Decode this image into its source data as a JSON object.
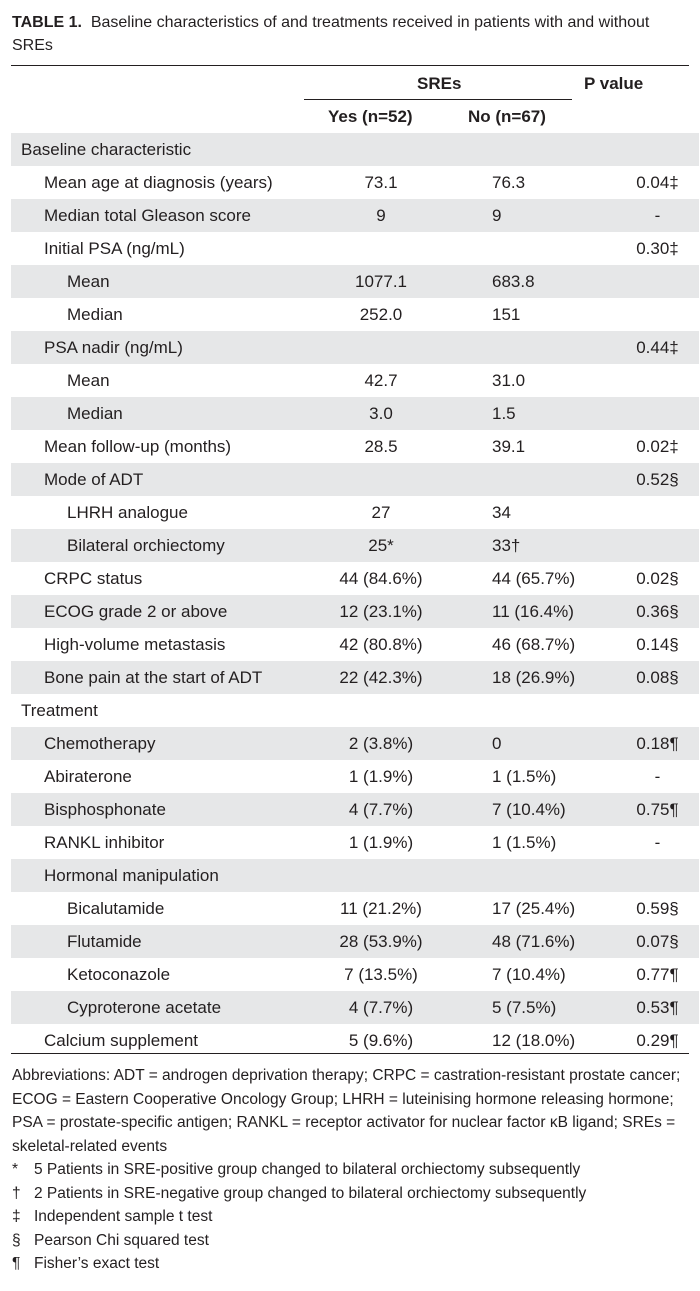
{
  "table_title": {
    "label": "TABLE 1.",
    "text": "Baseline characteristics of and treatments received in patients with and without SREs"
  },
  "header": {
    "group": "SREs",
    "yes": "Yes (n=52)",
    "no": "No (n=67)",
    "pvalue": "P value"
  },
  "rows": [
    {
      "label": "Baseline characteristic",
      "indent": 0,
      "yes": "",
      "no": "",
      "p": "",
      "shaded": true
    },
    {
      "label": "Mean age at diagnosis (years)",
      "indent": 1,
      "yes": "73.1",
      "no": "76.3",
      "p": "0.04‡",
      "shaded": false
    },
    {
      "label": "Median total Gleason score",
      "indent": 1,
      "yes": "9",
      "no": "9",
      "p": "-",
      "shaded": true
    },
    {
      "label": "Initial PSA (ng/mL)",
      "indent": 1,
      "yes": "",
      "no": "",
      "p": "0.30‡",
      "shaded": false
    },
    {
      "label": "Mean",
      "indent": 2,
      "yes": "1077.1",
      "no": "683.8",
      "p": "",
      "shaded": true
    },
    {
      "label": "Median",
      "indent": 2,
      "yes": "252.0",
      "no": "151",
      "p": "",
      "shaded": false
    },
    {
      "label": "PSA nadir (ng/mL)",
      "indent": 1,
      "yes": "",
      "no": "",
      "p": "0.44‡",
      "shaded": true
    },
    {
      "label": "Mean",
      "indent": 2,
      "yes": "42.7",
      "no": "31.0",
      "p": "",
      "shaded": false
    },
    {
      "label": "Median",
      "indent": 2,
      "yes": "3.0",
      "no": "1.5",
      "p": "",
      "shaded": true
    },
    {
      "label": "Mean follow-up (months)",
      "indent": 1,
      "yes": "28.5",
      "no": "39.1",
      "p": "0.02‡",
      "shaded": false
    },
    {
      "label": "Mode of ADT",
      "indent": 1,
      "yes": "",
      "no": "",
      "p": "0.52§",
      "shaded": true
    },
    {
      "label": "LHRH analogue",
      "indent": 2,
      "yes": "27",
      "no": "34",
      "p": "",
      "shaded": false
    },
    {
      "label": "Bilateral orchiectomy",
      "indent": 2,
      "yes": "25*",
      "no": "33†",
      "p": "",
      "shaded": true
    },
    {
      "label": "CRPC status",
      "indent": 1,
      "yes": "44 (84.6%)",
      "no": "44 (65.7%)",
      "p": "0.02§",
      "shaded": false
    },
    {
      "label": "ECOG grade 2 or above",
      "indent": 1,
      "yes": "12 (23.1%)",
      "no": "11 (16.4%)",
      "p": "0.36§",
      "shaded": true
    },
    {
      "label": "High-volume metastasis",
      "indent": 1,
      "yes": "42 (80.8%)",
      "no": "46 (68.7%)",
      "p": "0.14§",
      "shaded": false
    },
    {
      "label": "Bone pain at the start of ADT",
      "indent": 1,
      "yes": "22 (42.3%)",
      "no": "18 (26.9%)",
      "p": "0.08§",
      "shaded": true
    },
    {
      "label": "Treatment",
      "indent": 0,
      "yes": "",
      "no": "",
      "p": "",
      "shaded": false
    },
    {
      "label": "Chemotherapy",
      "indent": 1,
      "yes": "2 (3.8%)",
      "no": "0",
      "p": "0.18¶",
      "shaded": true
    },
    {
      "label": "Abiraterone",
      "indent": 1,
      "yes": "1 (1.9%)",
      "no": "1 (1.5%)",
      "p": "-",
      "shaded": false
    },
    {
      "label": "Bisphosphonate",
      "indent": 1,
      "yes": "4 (7.7%)",
      "no": "7 (10.4%)",
      "p": "0.75¶",
      "shaded": true
    },
    {
      "label": "RANKL inhibitor",
      "indent": 1,
      "yes": "1 (1.9%)",
      "no": "1 (1.5%)",
      "p": "-",
      "shaded": false
    },
    {
      "label": "Hormonal manipulation",
      "indent": 1,
      "yes": "",
      "no": "",
      "p": "",
      "shaded": true
    },
    {
      "label": "Bicalutamide",
      "indent": 2,
      "yes": "11 (21.2%)",
      "no": "17 (25.4%)",
      "p": "0.59§",
      "shaded": false
    },
    {
      "label": "Flutamide",
      "indent": 2,
      "yes": "28 (53.9%)",
      "no": "48 (71.6%)",
      "p": "0.07§",
      "shaded": true
    },
    {
      "label": "Ketoconazole",
      "indent": 2,
      "yes": "7 (13.5%)",
      "no": "7 (10.4%)",
      "p": "0.77¶",
      "shaded": false
    },
    {
      "label": "Cyproterone acetate",
      "indent": 2,
      "yes": "4 (7.7%)",
      "no": "5 (7.5%)",
      "p": "0.53¶",
      "shaded": true
    },
    {
      "label": "Calcium supplement",
      "indent": 1,
      "yes": "5 (9.6%)",
      "no": "12 (18.0%)",
      "p": "0.29¶",
      "shaded": false
    }
  ],
  "footnotes": {
    "abbreviations": "Abbreviations: ADT = androgen deprivation therapy; CRPC = castration-resistant prostate cancer; ECOG = Eastern Cooperative Oncology Group; LHRH = luteinising hormone releasing hormone; PSA = prostate-specific antigen; RANKL = receptor activator for nuclear factor κB ligand; SREs = skeletal-related events",
    "notes": [
      {
        "mark": "*",
        "text": "5 Patients in SRE-positive group changed to bilateral orchiectomy subsequently"
      },
      {
        "mark": "†",
        "text": "2 Patients in SRE-negative group changed to bilateral orchiectomy subsequently"
      },
      {
        "mark": "‡",
        "text": "Independent sample t test"
      },
      {
        "mark": "§",
        "text": "Pearson Chi squared test"
      },
      {
        "mark": "¶",
        "text": "Fisher’s exact test"
      }
    ]
  }
}
